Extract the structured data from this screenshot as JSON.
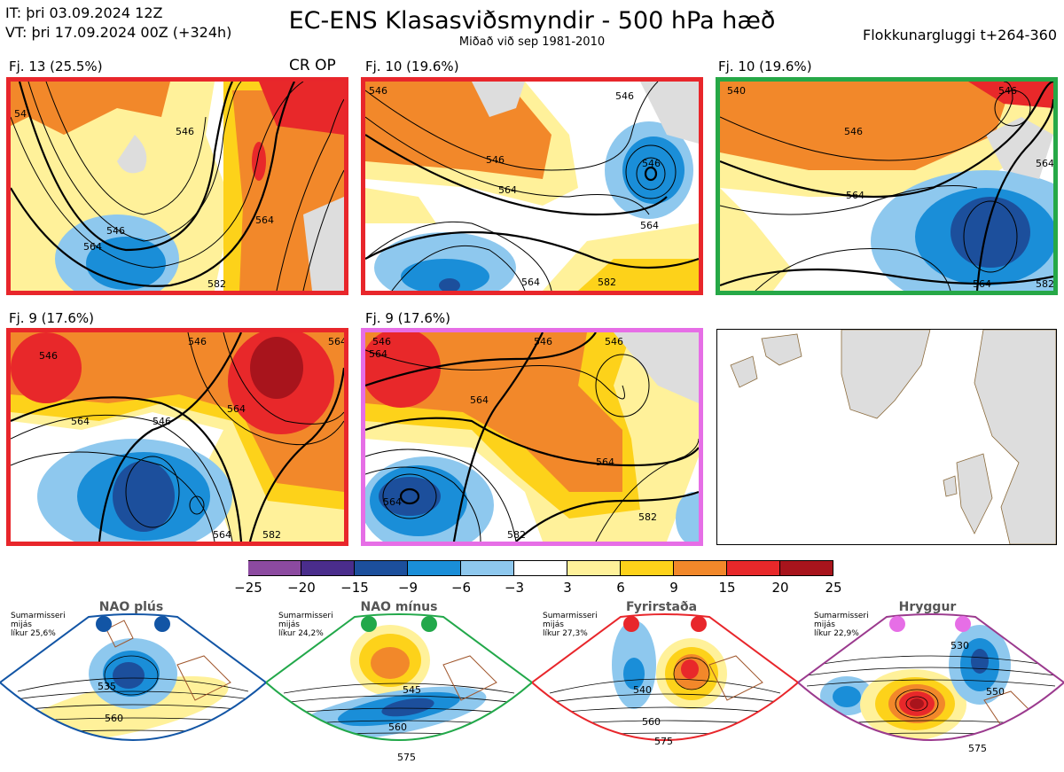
{
  "header": {
    "it_line": "IT: þri 03.09.2024 12Z",
    "vt_line": "VT: þri 17.09.2024 00Z  (+324h)",
    "title": "EC-ENS Klasasviðsmyndir - 500 hPa hæð",
    "subtitle": "Miðað við sep 1981-2010",
    "window": "Flokkunargluggi t+264-360"
  },
  "panels": [
    {
      "label": "Fj. 13 (25.5%)",
      "badge": "CR OP",
      "border": "#e8262b",
      "contours": [
        "546",
        "564",
        "546",
        "564",
        "582",
        "54"
      ]
    },
    {
      "label": "Fj. 10 (19.6%)",
      "border": "#e8262b",
      "contours": [
        "546",
        "546",
        "564",
        "546",
        "564",
        "564",
        "582",
        "546"
      ]
    },
    {
      "label": "Fj. 10 (19.6%)",
      "border": "#26a847",
      "contours": [
        "540",
        "546",
        "564",
        "546",
        "564",
        "564",
        "582"
      ]
    },
    {
      "label": "Fj. 9 (17.6%)",
      "border": "#e8262b",
      "contours": [
        "546",
        "546",
        "564",
        "564",
        "564",
        "546",
        "582",
        "564"
      ]
    },
    {
      "label": "Fj. 9 (17.6%)",
      "border": "#e66ee6",
      "contours": [
        "546",
        "546",
        "564",
        "564",
        "564",
        "546",
        "582",
        "564",
        "582"
      ]
    }
  ],
  "colorbar": {
    "ticks": [
      "−25",
      "−20",
      "−15",
      "−9",
      "−6",
      "−3",
      "3",
      "6",
      "9",
      "15",
      "20",
      "25"
    ],
    "colors": [
      "#8c4aa0",
      "#4a2d8c",
      "#1c4f9c",
      "#1a8ed8",
      "#8ec8ee",
      "#ffffff",
      "#fff19a",
      "#fdd21a",
      "#f2882a",
      "#e8282a",
      "#a8141c"
    ]
  },
  "regimes": [
    {
      "name": "NAO plús",
      "stats": [
        "Sumarmisseri",
        "mijás",
        "líkur 25,6%"
      ],
      "color": "#1255a5",
      "contours": [
        "535",
        "560"
      ]
    },
    {
      "name": "NAO mínus",
      "stats": [
        "Sumarmisseri",
        "mijás",
        "líkur 24,2%"
      ],
      "color": "#22a84a",
      "contours": [
        "545",
        "560",
        "575"
      ]
    },
    {
      "name": "Fyrirstaða",
      "stats": [
        "Sumarmisseri",
        "mijás",
        "líkur 27,3%"
      ],
      "color": "#e8262b",
      "contours": [
        "540",
        "560",
        "575"
      ]
    },
    {
      "name": "Hryggur",
      "stats": [
        "Sumarmisseri",
        "mijás",
        "líkur 22,9%"
      ],
      "color": "#e66ee6",
      "contours": [
        "530",
        "550",
        "575"
      ]
    }
  ]
}
